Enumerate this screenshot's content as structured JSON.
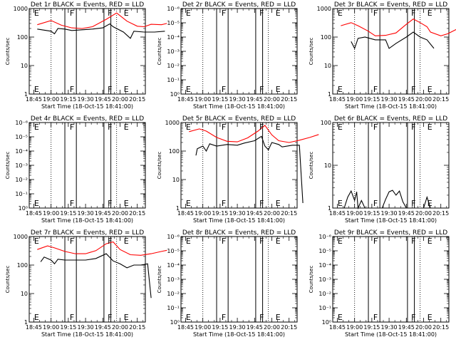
{
  "chart_data": [
    {
      "type": "line",
      "title": "Det 1r BLACK = Events, RED = LLD",
      "ylabel": "Counts/sec",
      "xlabel": "Start Time (18-Oct-15 18:41:00)",
      "x_ticks": [
        "18:45",
        "19:00",
        "19:15",
        "19:30",
        "19:45",
        "20:00",
        "20:15"
      ],
      "y_scale": "log",
      "y_ticks": [
        "1",
        "10",
        "100",
        "1000"
      ],
      "ylim_decades": 3,
      "markers": [
        {
          "time": "18:44",
          "label": "E"
        },
        {
          "time": "19:15",
          "label": "F"
        },
        {
          "time": "19:48",
          "label": "F"
        },
        {
          "time": "20:02",
          "label": "E"
        }
      ],
      "vlines": [
        "19:12",
        "19:22",
        "19:46",
        "19:52"
      ],
      "dotted_vlines": [
        "19:00",
        "19:57"
      ],
      "series": [
        {
          "color": "#ff0000",
          "points": [
            [
              18.8,
              270
            ],
            [
              19.0,
              380
            ],
            [
              19.15,
              260
            ],
            [
              19.3,
              210
            ],
            [
              19.45,
              200
            ],
            [
              19.6,
              230
            ],
            [
              19.8,
              420
            ],
            [
              19.95,
              700
            ],
            [
              20.1,
              360
            ],
            [
              20.25,
              240
            ],
            [
              20.35,
              230
            ],
            [
              20.45,
              280
            ],
            [
              20.6,
              270
            ],
            [
              20.68,
              300
            ]
          ]
        },
        {
          "color": "#000000",
          "points": [
            [
              18.8,
              190
            ],
            [
              19.0,
              160
            ],
            [
              19.05,
              130
            ],
            [
              19.1,
              200
            ],
            [
              19.2,
              190
            ],
            [
              19.3,
              170
            ],
            [
              19.45,
              180
            ],
            [
              19.6,
              190
            ],
            [
              19.75,
              210
            ],
            [
              19.85,
              290
            ],
            [
              19.9,
              230
            ],
            [
              20.05,
              150
            ],
            [
              20.15,
              90
            ],
            [
              20.2,
              160
            ],
            [
              20.35,
              150
            ],
            [
              20.5,
              150
            ],
            [
              20.65,
              160
            ]
          ]
        }
      ]
    },
    {
      "type": "line",
      "title": "Det 2r BLACK = Events, RED = LLD",
      "ylabel": "Counts/sec",
      "xlabel": "Start Time (18-Oct-15 18:41:00)",
      "x_ticks": [
        "18:45",
        "19:00",
        "19:15",
        "19:30",
        "19:45",
        "20:00",
        "20:15"
      ],
      "y_scale": "log",
      "y_ticks": [
        "10⁰",
        "10⁻¹",
        "10⁻²",
        "10⁻³",
        "10⁻⁴",
        "10⁻⁵",
        "10⁻⁶"
      ],
      "ylim_decades": 6,
      "markers": [
        {
          "time": "18:44",
          "label": "E"
        },
        {
          "time": "19:15",
          "label": "F"
        },
        {
          "time": "19:48",
          "label": "F"
        },
        {
          "time": "20:02",
          "label": "E"
        }
      ],
      "vlines": [
        "19:12",
        "19:22",
        "19:46",
        "19:52"
      ],
      "dotted_vlines": [
        "19:00",
        "19:57"
      ],
      "series": []
    },
    {
      "type": "line",
      "title": "Det 3r BLACK = Events, RED = LLD",
      "ylabel": "Counts/sec",
      "xlabel": "Start Time (18-Oct-15 18:41:00)",
      "x_ticks": [
        "18:45",
        "19:00",
        "19:15",
        "19:30",
        "19:45",
        "20:00",
        "20:15"
      ],
      "y_scale": "log",
      "y_ticks": [
        "1",
        "10",
        "100",
        "1000"
      ],
      "ylim_decades": 3,
      "markers": [
        {
          "time": "18:44",
          "label": "E"
        },
        {
          "time": "19:15",
          "label": "F"
        },
        {
          "time": "19:48",
          "label": "F"
        },
        {
          "time": "20:02",
          "label": "E"
        }
      ],
      "vlines": [
        "19:12",
        "19:22",
        "19:46",
        "19:52"
      ],
      "dotted_vlines": [
        "19:00",
        "19:57"
      ],
      "series": [
        {
          "color": "#ff0000",
          "points": [
            [
              18.8,
              250
            ],
            [
              18.95,
              320
            ],
            [
              19.05,
              250
            ],
            [
              19.2,
              160
            ],
            [
              19.3,
              110
            ],
            [
              19.45,
              115
            ],
            [
              19.6,
              140
            ],
            [
              19.75,
              280
            ],
            [
              19.85,
              430
            ],
            [
              19.95,
              320
            ],
            [
              20.05,
              230
            ],
            [
              20.1,
              150
            ],
            [
              20.25,
              110
            ],
            [
              20.35,
              130
            ],
            [
              20.5,
              200
            ],
            [
              20.68,
              350
            ]
          ]
        },
        {
          "color": "#000000",
          "points": [
            [
              18.95,
              70
            ],
            [
              19.0,
              40
            ],
            [
              19.05,
              90
            ],
            [
              19.15,
              100
            ],
            [
              19.3,
              80
            ],
            [
              19.45,
              80
            ],
            [
              19.5,
              40
            ],
            [
              19.6,
              60
            ],
            [
              19.75,
              100
            ],
            [
              19.85,
              150
            ],
            [
              19.95,
              100
            ],
            [
              20.05,
              80
            ],
            [
              20.15,
              40
            ]
          ]
        }
      ]
    },
    {
      "type": "line",
      "title": "Det 4r BLACK = Events, RED = LLD",
      "ylabel": "Counts/sec",
      "xlabel": "Start Time (18-Oct-15 18:41:00)",
      "x_ticks": [
        "18:45",
        "19:00",
        "19:15",
        "19:30",
        "19:45",
        "20:00",
        "20:15"
      ],
      "y_scale": "log",
      "y_ticks": [
        "10⁰",
        "10⁻¹",
        "10⁻²",
        "10⁻³",
        "10⁻⁴",
        "10⁻⁵",
        "10⁻⁶"
      ],
      "ylim_decades": 6,
      "markers": [
        {
          "time": "18:44",
          "label": "E"
        },
        {
          "time": "19:15",
          "label": "F"
        },
        {
          "time": "19:48",
          "label": "F"
        },
        {
          "time": "20:02",
          "label": "E"
        }
      ],
      "vlines": [
        "19:12",
        "19:22",
        "19:46",
        "19:52"
      ],
      "dotted_vlines": [
        "19:00",
        "19:57"
      ],
      "series": []
    },
    {
      "type": "line",
      "title": "Det 5r BLACK = Events, RED = LLD",
      "ylabel": "Counts/sec",
      "xlabel": "Start Time (18-Oct-15 18:41:00)",
      "x_ticks": [
        "18:45",
        "19:00",
        "19:15",
        "19:30",
        "19:45",
        "20:00",
        "20:15"
      ],
      "y_scale": "log",
      "y_ticks": [
        "1",
        "10",
        "100",
        "1000"
      ],
      "ylim_decades": 3,
      "markers": [
        {
          "time": "18:44",
          "label": "E"
        },
        {
          "time": "19:15",
          "label": "F"
        },
        {
          "time": "19:48",
          "label": "F"
        },
        {
          "time": "20:02",
          "label": "E"
        }
      ],
      "vlines": [
        "19:12",
        "19:22",
        "19:46",
        "19:52"
      ],
      "dotted_vlines": [
        "19:00",
        "19:57"
      ],
      "series": [
        {
          "color": "#ff0000",
          "points": [
            [
              18.8,
              480
            ],
            [
              18.95,
              600
            ],
            [
              19.05,
              500
            ],
            [
              19.2,
              300
            ],
            [
              19.35,
              220
            ],
            [
              19.5,
              210
            ],
            [
              19.65,
              290
            ],
            [
              19.8,
              500
            ],
            [
              19.9,
              800
            ],
            [
              20.0,
              370
            ],
            [
              20.1,
              230
            ],
            [
              20.25,
              200
            ],
            [
              20.4,
              240
            ],
            [
              20.55,
              300
            ],
            [
              20.68,
              380
            ]
          ]
        },
        {
          "color": "#000000",
          "points": [
            [
              18.9,
              70
            ],
            [
              18.92,
              120
            ],
            [
              19.0,
              150
            ],
            [
              19.05,
              100
            ],
            [
              19.1,
              180
            ],
            [
              19.2,
              150
            ],
            [
              19.35,
              170
            ],
            [
              19.5,
              160
            ],
            [
              19.6,
              190
            ],
            [
              19.75,
              230
            ],
            [
              19.85,
              330
            ],
            [
              19.9,
              150
            ],
            [
              19.95,
              110
            ],
            [
              20.0,
              200
            ],
            [
              20.1,
              170
            ],
            [
              20.15,
              140
            ],
            [
              20.3,
              160
            ],
            [
              20.4,
              160
            ],
            [
              20.45,
              1.5
            ]
          ]
        }
      ]
    },
    {
      "type": "line",
      "title": "Det 6r BLACK = Events, RED = LLD",
      "ylabel": "Counts/sec",
      "xlabel": "Start Time (18-Oct-15 18:41:00)",
      "x_ticks": [
        "18:45",
        "19:00",
        "19:15",
        "19:30",
        "19:45",
        "20:00",
        "20:15"
      ],
      "y_scale": "log",
      "y_ticks": [
        "1",
        "10",
        "100"
      ],
      "ylim_decades": 2,
      "markers": [
        {
          "time": "18:44",
          "label": "E"
        },
        {
          "time": "19:15",
          "label": "F"
        },
        {
          "time": "19:48",
          "label": "F"
        },
        {
          "time": "20:02",
          "label": "E"
        }
      ],
      "vlines": [
        "19:12",
        "19:22",
        "19:46",
        "19:52"
      ],
      "dotted_vlines": [
        "19:00",
        "19:57"
      ],
      "series": [
        {
          "color": "#000000",
          "points": [
            [
              18.85,
              1
            ],
            [
              18.9,
              1.8
            ],
            [
              18.95,
              2.5
            ],
            [
              19.0,
              1.5
            ],
            [
              19.03,
              2.4
            ],
            [
              19.05,
              1
            ],
            [
              19.1,
              1.5
            ],
            [
              19.15,
              1
            ],
            [
              19.4,
              1
            ],
            [
              19.45,
              1.6
            ],
            [
              19.5,
              2.4
            ],
            [
              19.55,
              2.6
            ],
            [
              19.6,
              2.0
            ],
            [
              19.65,
              2.5
            ],
            [
              19.7,
              1.4
            ],
            [
              19.75,
              1
            ],
            [
              20.0,
              1
            ],
            [
              20.05,
              1.8
            ],
            [
              20.1,
              1
            ]
          ]
        }
      ]
    },
    {
      "type": "line",
      "title": "Det 7r BLACK = Events, RED = LLD",
      "ylabel": "Counts/sec",
      "xlabel": "Start Time (18-Oct-15 18:41:00)",
      "x_ticks": [
        "18:45",
        "19:00",
        "19:15",
        "19:30",
        "19:45",
        "20:00",
        "20:15"
      ],
      "y_scale": "log",
      "y_ticks": [
        "1",
        "10",
        "100",
        "1000"
      ],
      "ylim_decades": 3,
      "markers": [
        {
          "time": "18:44",
          "label": "E"
        },
        {
          "time": "19:15",
          "label": "F"
        },
        {
          "time": "19:48",
          "label": "F"
        },
        {
          "time": "20:02",
          "label": "E"
        }
      ],
      "vlines": [
        "19:12",
        "19:22",
        "19:46",
        "19:52"
      ],
      "dotted_vlines": [
        "19:00",
        "19:57"
      ],
      "series": [
        {
          "color": "#ff0000",
          "points": [
            [
              18.8,
              350
            ],
            [
              18.95,
              470
            ],
            [
              19.05,
              400
            ],
            [
              19.2,
              300
            ],
            [
              19.35,
              250
            ],
            [
              19.5,
              250
            ],
            [
              19.65,
              320
            ],
            [
              19.8,
              560
            ],
            [
              19.9,
              650
            ],
            [
              20.0,
              350
            ],
            [
              20.15,
              230
            ],
            [
              20.3,
              220
            ],
            [
              20.45,
              250
            ],
            [
              20.6,
              300
            ],
            [
              20.68,
              330
            ]
          ]
        },
        {
          "color": "#000000",
          "points": [
            [
              18.85,
              130
            ],
            [
              18.9,
              190
            ],
            [
              19.0,
              150
            ],
            [
              19.05,
              110
            ],
            [
              19.1,
              160
            ],
            [
              19.2,
              150
            ],
            [
              19.35,
              150
            ],
            [
              19.5,
              150
            ],
            [
              19.65,
              170
            ],
            [
              19.8,
              250
            ],
            [
              19.9,
              140
            ],
            [
              20.0,
              110
            ],
            [
              20.1,
              80
            ],
            [
              20.2,
              100
            ],
            [
              20.3,
              100
            ],
            [
              20.4,
              110
            ],
            [
              20.45,
              7
            ]
          ]
        }
      ]
    },
    {
      "type": "line",
      "title": "Det 8r BLACK = Events, RED = LLD",
      "ylabel": "Counts/sec",
      "xlabel": "Start Time (18-Oct-15 18:41:00)",
      "x_ticks": [
        "18:45",
        "19:00",
        "19:15",
        "19:30",
        "19:45",
        "20:00",
        "20:15"
      ],
      "y_scale": "log",
      "y_ticks": [
        "10⁰",
        "10⁻¹",
        "10⁻²",
        "10⁻³",
        "10⁻⁴",
        "10⁻⁵",
        "10⁻⁶"
      ],
      "ylim_decades": 6,
      "markers": [
        {
          "time": "18:44",
          "label": "E"
        },
        {
          "time": "19:15",
          "label": "F"
        },
        {
          "time": "19:48",
          "label": "F"
        },
        {
          "time": "20:02",
          "label": "E"
        }
      ],
      "vlines": [
        "19:12",
        "19:22",
        "19:46",
        "19:52"
      ],
      "dotted_vlines": [
        "19:00",
        "19:57"
      ],
      "series": []
    },
    {
      "type": "line",
      "title": "Det 9r BLACK = Events, RED = LLD",
      "ylabel": "Counts/sec",
      "xlabel": "Start Time (18-Oct-15 18:41:00)",
      "x_ticks": [
        "18:45",
        "19:00",
        "19:15",
        "19:30",
        "19:45",
        "20:00",
        "20:15"
      ],
      "y_scale": "log",
      "y_ticks": [
        "10⁰",
        "10⁻¹",
        "10⁻²",
        "10⁻³",
        "10⁻⁴",
        "10⁻⁵",
        "10⁻⁶"
      ],
      "ylim_decades": 6,
      "markers": [
        {
          "time": "18:44",
          "label": "E"
        },
        {
          "time": "19:15",
          "label": "F"
        },
        {
          "time": "19:48",
          "label": "F"
        },
        {
          "time": "20:02",
          "label": "E"
        }
      ],
      "vlines": [
        "19:12",
        "19:22",
        "19:46",
        "19:52"
      ],
      "dotted_vlines": [
        "19:00",
        "19:57"
      ],
      "series": []
    }
  ]
}
